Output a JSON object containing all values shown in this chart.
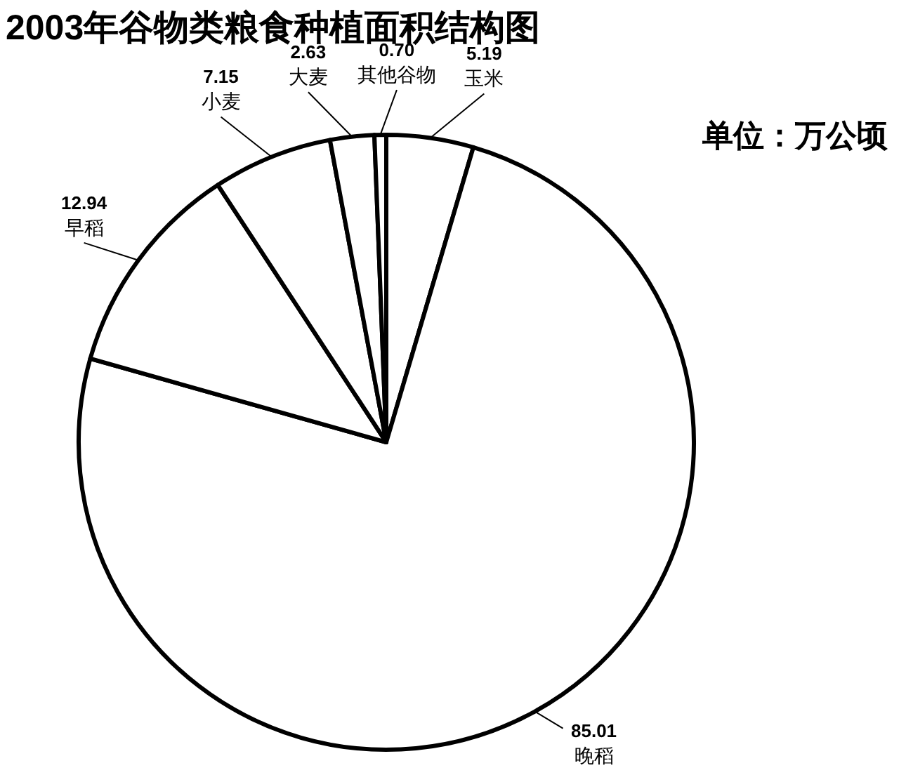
{
  "chart_data": {
    "type": "pie",
    "title": "2003年谷物类粮食种植面积结构图",
    "annotations": [
      "单位：万公顷"
    ],
    "categories": [
      "玉米",
      "晚稻",
      "早稻",
      "小麦",
      "大麦",
      "其他谷物"
    ],
    "values": [
      5.19,
      85.01,
      12.94,
      7.15,
      2.63,
      0.7
    ],
    "colors": [
      "#ffffff",
      "#ffffff",
      "#ffffff",
      "#ffffff",
      "#ffffff",
      "#ffffff"
    ],
    "value_labels": [
      "5.19",
      "85.01",
      "12.94",
      "7.15",
      "2.63",
      "0.70"
    ]
  }
}
